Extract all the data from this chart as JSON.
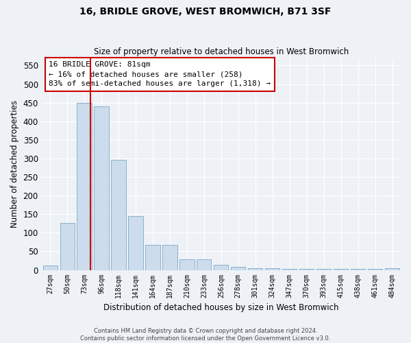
{
  "title": "16, BRIDLE GROVE, WEST BROMWICH, B71 3SF",
  "subtitle": "Size of property relative to detached houses in West Bromwich",
  "xlabel": "Distribution of detached houses by size in West Bromwich",
  "ylabel": "Number of detached properties",
  "bar_color": "#ccdcec",
  "bar_edge_color": "#8ab0cc",
  "categories": [
    "27sqm",
    "50sqm",
    "73sqm",
    "96sqm",
    "118sqm",
    "141sqm",
    "164sqm",
    "187sqm",
    "210sqm",
    "233sqm",
    "256sqm",
    "278sqm",
    "301sqm",
    "324sqm",
    "347sqm",
    "370sqm",
    "393sqm",
    "415sqm",
    "438sqm",
    "461sqm",
    "484sqm"
  ],
  "values": [
    13,
    127,
    450,
    440,
    297,
    145,
    67,
    67,
    28,
    28,
    14,
    8,
    5,
    5,
    2,
    2,
    2,
    2,
    2,
    2,
    5
  ],
  "ylim": [
    0,
    570
  ],
  "yticks": [
    0,
    50,
    100,
    150,
    200,
    250,
    300,
    350,
    400,
    450,
    500,
    550
  ],
  "vline_x": 2.35,
  "annotation_line1": "16 BRIDLE GROVE: 81sqm",
  "annotation_line2": "← 16% of detached houses are smaller (258)",
  "annotation_line3": "83% of semi-detached houses are larger (1,318) →",
  "annotation_box_color": "#ffffff",
  "annotation_box_edge": "#cc0000",
  "vline_color": "#cc0000",
  "footer1": "Contains HM Land Registry data © Crown copyright and database right 2024.",
  "footer2": "Contains public sector information licensed under the Open Government Licence v3.0.",
  "background_color": "#eef2f7",
  "grid_color": "#ffffff"
}
